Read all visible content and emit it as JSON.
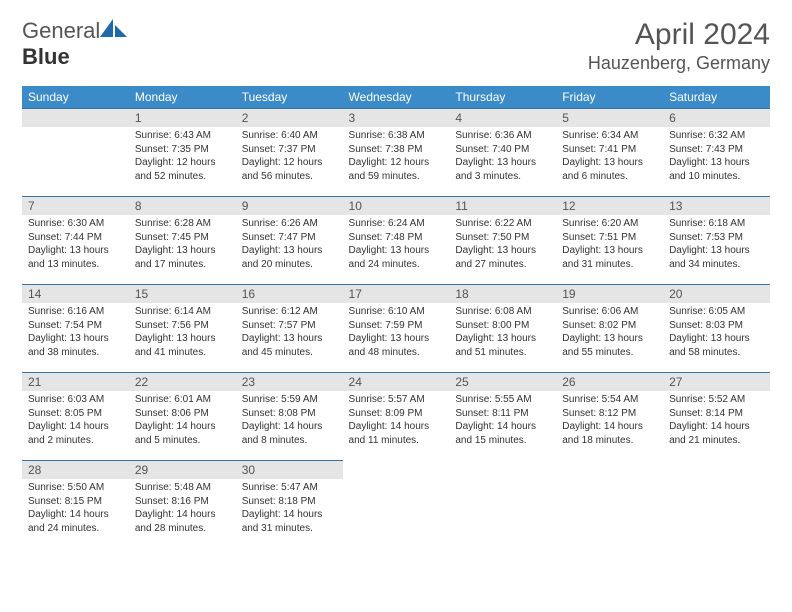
{
  "logo": {
    "text1": "General",
    "text2": "Blue",
    "icon_color": "#1e6aa8"
  },
  "title": "April 2024",
  "location": "Hauzenberg, Germany",
  "colors": {
    "header_bg": "#3b8bc9",
    "header_text": "#ffffff",
    "daynum_bg": "#e5e5e5",
    "border": "#3b74a0",
    "text": "#333333"
  },
  "daysOfWeek": [
    "Sunday",
    "Monday",
    "Tuesday",
    "Wednesday",
    "Thursday",
    "Friday",
    "Saturday"
  ],
  "weeks": [
    [
      {
        "num": "",
        "sunrise": "",
        "sunset": "",
        "daylight1": "",
        "daylight2": ""
      },
      {
        "num": "1",
        "sunrise": "Sunrise: 6:43 AM",
        "sunset": "Sunset: 7:35 PM",
        "daylight1": "Daylight: 12 hours",
        "daylight2": "and 52 minutes."
      },
      {
        "num": "2",
        "sunrise": "Sunrise: 6:40 AM",
        "sunset": "Sunset: 7:37 PM",
        "daylight1": "Daylight: 12 hours",
        "daylight2": "and 56 minutes."
      },
      {
        "num": "3",
        "sunrise": "Sunrise: 6:38 AM",
        "sunset": "Sunset: 7:38 PM",
        "daylight1": "Daylight: 12 hours",
        "daylight2": "and 59 minutes."
      },
      {
        "num": "4",
        "sunrise": "Sunrise: 6:36 AM",
        "sunset": "Sunset: 7:40 PM",
        "daylight1": "Daylight: 13 hours",
        "daylight2": "and 3 minutes."
      },
      {
        "num": "5",
        "sunrise": "Sunrise: 6:34 AM",
        "sunset": "Sunset: 7:41 PM",
        "daylight1": "Daylight: 13 hours",
        "daylight2": "and 6 minutes."
      },
      {
        "num": "6",
        "sunrise": "Sunrise: 6:32 AM",
        "sunset": "Sunset: 7:43 PM",
        "daylight1": "Daylight: 13 hours",
        "daylight2": "and 10 minutes."
      }
    ],
    [
      {
        "num": "7",
        "sunrise": "Sunrise: 6:30 AM",
        "sunset": "Sunset: 7:44 PM",
        "daylight1": "Daylight: 13 hours",
        "daylight2": "and 13 minutes."
      },
      {
        "num": "8",
        "sunrise": "Sunrise: 6:28 AM",
        "sunset": "Sunset: 7:45 PM",
        "daylight1": "Daylight: 13 hours",
        "daylight2": "and 17 minutes."
      },
      {
        "num": "9",
        "sunrise": "Sunrise: 6:26 AM",
        "sunset": "Sunset: 7:47 PM",
        "daylight1": "Daylight: 13 hours",
        "daylight2": "and 20 minutes."
      },
      {
        "num": "10",
        "sunrise": "Sunrise: 6:24 AM",
        "sunset": "Sunset: 7:48 PM",
        "daylight1": "Daylight: 13 hours",
        "daylight2": "and 24 minutes."
      },
      {
        "num": "11",
        "sunrise": "Sunrise: 6:22 AM",
        "sunset": "Sunset: 7:50 PM",
        "daylight1": "Daylight: 13 hours",
        "daylight2": "and 27 minutes."
      },
      {
        "num": "12",
        "sunrise": "Sunrise: 6:20 AM",
        "sunset": "Sunset: 7:51 PM",
        "daylight1": "Daylight: 13 hours",
        "daylight2": "and 31 minutes."
      },
      {
        "num": "13",
        "sunrise": "Sunrise: 6:18 AM",
        "sunset": "Sunset: 7:53 PM",
        "daylight1": "Daylight: 13 hours",
        "daylight2": "and 34 minutes."
      }
    ],
    [
      {
        "num": "14",
        "sunrise": "Sunrise: 6:16 AM",
        "sunset": "Sunset: 7:54 PM",
        "daylight1": "Daylight: 13 hours",
        "daylight2": "and 38 minutes."
      },
      {
        "num": "15",
        "sunrise": "Sunrise: 6:14 AM",
        "sunset": "Sunset: 7:56 PM",
        "daylight1": "Daylight: 13 hours",
        "daylight2": "and 41 minutes."
      },
      {
        "num": "16",
        "sunrise": "Sunrise: 6:12 AM",
        "sunset": "Sunset: 7:57 PM",
        "daylight1": "Daylight: 13 hours",
        "daylight2": "and 45 minutes."
      },
      {
        "num": "17",
        "sunrise": "Sunrise: 6:10 AM",
        "sunset": "Sunset: 7:59 PM",
        "daylight1": "Daylight: 13 hours",
        "daylight2": "and 48 minutes."
      },
      {
        "num": "18",
        "sunrise": "Sunrise: 6:08 AM",
        "sunset": "Sunset: 8:00 PM",
        "daylight1": "Daylight: 13 hours",
        "daylight2": "and 51 minutes."
      },
      {
        "num": "19",
        "sunrise": "Sunrise: 6:06 AM",
        "sunset": "Sunset: 8:02 PM",
        "daylight1": "Daylight: 13 hours",
        "daylight2": "and 55 minutes."
      },
      {
        "num": "20",
        "sunrise": "Sunrise: 6:05 AM",
        "sunset": "Sunset: 8:03 PM",
        "daylight1": "Daylight: 13 hours",
        "daylight2": "and 58 minutes."
      }
    ],
    [
      {
        "num": "21",
        "sunrise": "Sunrise: 6:03 AM",
        "sunset": "Sunset: 8:05 PM",
        "daylight1": "Daylight: 14 hours",
        "daylight2": "and 2 minutes."
      },
      {
        "num": "22",
        "sunrise": "Sunrise: 6:01 AM",
        "sunset": "Sunset: 8:06 PM",
        "daylight1": "Daylight: 14 hours",
        "daylight2": "and 5 minutes."
      },
      {
        "num": "23",
        "sunrise": "Sunrise: 5:59 AM",
        "sunset": "Sunset: 8:08 PM",
        "daylight1": "Daylight: 14 hours",
        "daylight2": "and 8 minutes."
      },
      {
        "num": "24",
        "sunrise": "Sunrise: 5:57 AM",
        "sunset": "Sunset: 8:09 PM",
        "daylight1": "Daylight: 14 hours",
        "daylight2": "and 11 minutes."
      },
      {
        "num": "25",
        "sunrise": "Sunrise: 5:55 AM",
        "sunset": "Sunset: 8:11 PM",
        "daylight1": "Daylight: 14 hours",
        "daylight2": "and 15 minutes."
      },
      {
        "num": "26",
        "sunrise": "Sunrise: 5:54 AM",
        "sunset": "Sunset: 8:12 PM",
        "daylight1": "Daylight: 14 hours",
        "daylight2": "and 18 minutes."
      },
      {
        "num": "27",
        "sunrise": "Sunrise: 5:52 AM",
        "sunset": "Sunset: 8:14 PM",
        "daylight1": "Daylight: 14 hours",
        "daylight2": "and 21 minutes."
      }
    ],
    [
      {
        "num": "28",
        "sunrise": "Sunrise: 5:50 AM",
        "sunset": "Sunset: 8:15 PM",
        "daylight1": "Daylight: 14 hours",
        "daylight2": "and 24 minutes."
      },
      {
        "num": "29",
        "sunrise": "Sunrise: 5:48 AM",
        "sunset": "Sunset: 8:16 PM",
        "daylight1": "Daylight: 14 hours",
        "daylight2": "and 28 minutes."
      },
      {
        "num": "30",
        "sunrise": "Sunrise: 5:47 AM",
        "sunset": "Sunset: 8:18 PM",
        "daylight1": "Daylight: 14 hours",
        "daylight2": "and 31 minutes."
      },
      {
        "num": "",
        "sunrise": "",
        "sunset": "",
        "daylight1": "",
        "daylight2": ""
      },
      {
        "num": "",
        "sunrise": "",
        "sunset": "",
        "daylight1": "",
        "daylight2": ""
      },
      {
        "num": "",
        "sunrise": "",
        "sunset": "",
        "daylight1": "",
        "daylight2": ""
      },
      {
        "num": "",
        "sunrise": "",
        "sunset": "",
        "daylight1": "",
        "daylight2": ""
      }
    ]
  ]
}
